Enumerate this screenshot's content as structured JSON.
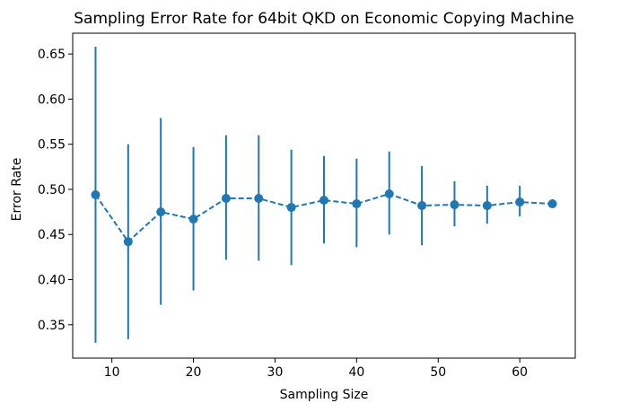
{
  "chart_data": {
    "type": "scatter",
    "title": "Sampling Error Rate for 64bit QKD on Economic Copying Machine",
    "xlabel": "Sampling Size",
    "ylabel": "Error Rate",
    "xlim": [
      5.2,
      66.8
    ],
    "ylim": [
      0.313,
      0.673
    ],
    "xticks": [
      10,
      20,
      30,
      40,
      50,
      60
    ],
    "xtick_labels": [
      "10",
      "20",
      "30",
      "40",
      "50",
      "60"
    ],
    "yticks": [
      0.35,
      0.4,
      0.45,
      0.5,
      0.55,
      0.6,
      0.65
    ],
    "ytick_labels": [
      "0.35",
      "0.40",
      "0.45",
      "0.50",
      "0.55",
      "0.60",
      "0.65"
    ],
    "grid": false,
    "line_style": "dashed",
    "marker": "circle",
    "color": "#1f77b4",
    "x": [
      8,
      12,
      16,
      20,
      24,
      28,
      32,
      36,
      40,
      44,
      48,
      52,
      56,
      60,
      64
    ],
    "y": [
      0.494,
      0.442,
      0.475,
      0.467,
      0.49,
      0.49,
      0.48,
      0.488,
      0.484,
      0.495,
      0.482,
      0.483,
      0.482,
      0.486,
      0.484
    ],
    "err_low": [
      0.33,
      0.334,
      0.372,
      0.388,
      0.422,
      0.421,
      0.416,
      0.44,
      0.436,
      0.45,
      0.438,
      0.459,
      0.462,
      0.47,
      0.484
    ],
    "err_high": [
      0.658,
      0.55,
      0.579,
      0.547,
      0.56,
      0.56,
      0.544,
      0.537,
      0.534,
      0.542,
      0.526,
      0.509,
      0.504,
      0.504,
      0.484
    ]
  }
}
